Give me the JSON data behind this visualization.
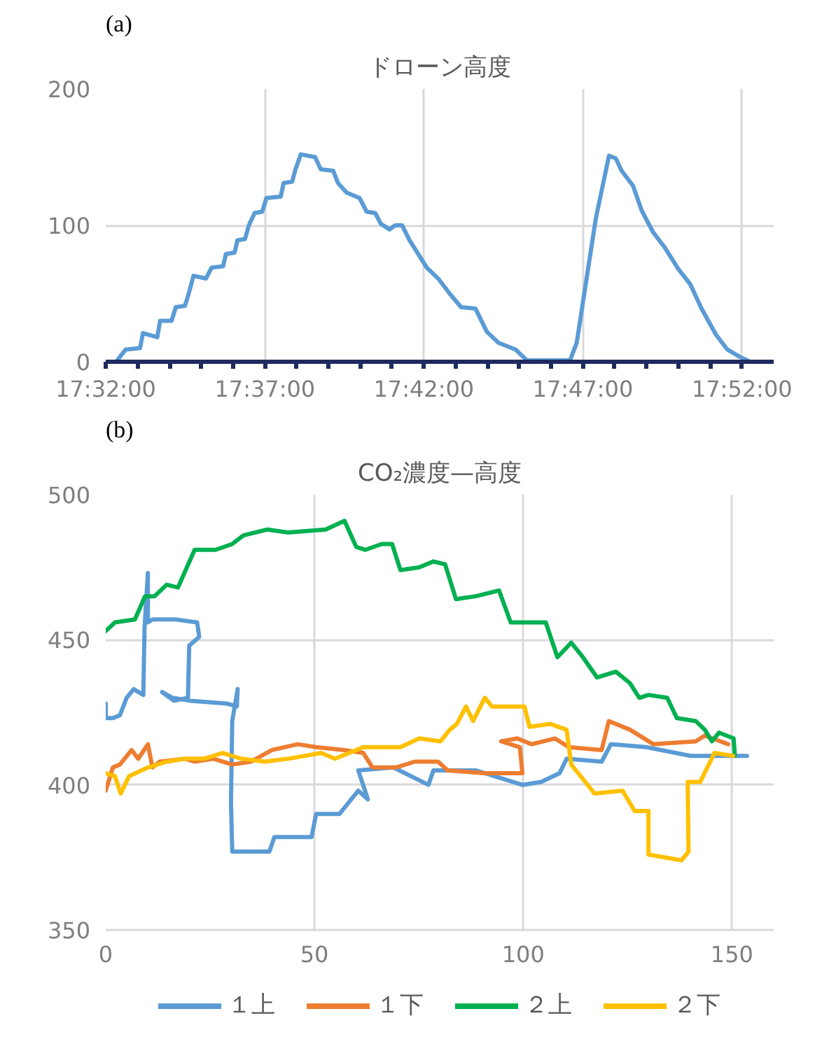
{
  "chart_data": [
    {
      "type": "line",
      "title": "ドローン高度",
      "annotations": [
        "(a)"
      ],
      "color": "#5b9bd5",
      "x": [
        17.5387,
        17.5438,
        17.5513,
        17.5528,
        17.5603,
        17.5618,
        17.5678,
        17.57,
        17.5748,
        17.5768,
        17.5793,
        17.5858,
        17.5888,
        17.5948,
        17.5963,
        17.6008,
        17.6023,
        17.6063,
        17.6083,
        17.6113,
        17.6153,
        17.6175,
        17.625,
        17.6265,
        17.631,
        17.6325,
        17.6355,
        17.643,
        17.646,
        17.6525,
        17.655,
        17.6595,
        17.6663,
        17.67,
        17.6745,
        17.6775,
        17.682,
        17.685,
        17.6886,
        17.6925,
        17.697,
        17.7015,
        17.7075,
        17.7135,
        17.7195,
        17.727,
        17.733,
        17.739,
        17.748,
        17.754,
        17.7766,
        17.7801,
        17.7901,
        17.797,
        17.8006,
        17.8036,
        17.8096,
        17.8141,
        17.8201,
        17.8261,
        17.8333,
        17.8395,
        17.8455,
        17.853,
        17.859,
        17.865,
        17.871
      ],
      "values": [
        0,
        9,
        10,
        21,
        18,
        30,
        30,
        40,
        41,
        50,
        63,
        61,
        69,
        70,
        79,
        80,
        89,
        90,
        100,
        109,
        110,
        120,
        121,
        131,
        132,
        140,
        152,
        150,
        141,
        140,
        131,
        124,
        120,
        110,
        109,
        101,
        97,
        100,
        100,
        89,
        79,
        69,
        61,
        50,
        40,
        39,
        22,
        14,
        9,
        1,
        1,
        14,
        105,
        151,
        149,
        140,
        129,
        111,
        95,
        84,
        68,
        57,
        39,
        20,
        9,
        4,
        0
      ],
      "xlim": [
        17.5333,
        17.8833
      ],
      "ylim": [
        0,
        200
      ],
      "yticks": [
        0,
        100,
        200
      ],
      "xticks": [
        {
          "value": 17.5333,
          "label": "17:32:00"
        },
        {
          "value": 17.55,
          "label": null
        },
        {
          "value": 17.5667,
          "label": null
        },
        {
          "value": 17.5833,
          "label": null
        },
        {
          "value": 17.6,
          "label": null
        },
        {
          "value": 17.6167,
          "label": "17:37:00"
        },
        {
          "value": 17.6333,
          "label": null
        },
        {
          "value": 17.65,
          "label": null
        },
        {
          "value": 17.6667,
          "label": null
        },
        {
          "value": 17.6833,
          "label": null
        },
        {
          "value": 17.7,
          "label": "17:42:00"
        },
        {
          "value": 17.7167,
          "label": null
        },
        {
          "value": 17.7333,
          "label": null
        },
        {
          "value": 17.75,
          "label": null
        },
        {
          "value": 17.7667,
          "label": null
        },
        {
          "value": 17.7833,
          "label": "17:47:00"
        },
        {
          "value": 17.8,
          "label": null
        },
        {
          "value": 17.8167,
          "label": null
        },
        {
          "value": 17.8333,
          "label": null
        },
        {
          "value": 17.85,
          "label": null
        },
        {
          "value": 17.8667,
          "label": "17:52:00"
        }
      ],
      "grid": true
    },
    {
      "type": "line",
      "title": "CO₂濃度—高度",
      "annotations": [
        "(b)"
      ],
      "xlim": [
        0,
        160
      ],
      "ylim": [
        350,
        500
      ],
      "xticks": [
        0,
        50,
        100,
        150
      ],
      "yticks": [
        350,
        400,
        450,
        500
      ],
      "grid": true,
      "legend": "bottom",
      "series": [
        {
          "name": "１上",
          "color": "#5b9bd5",
          "x": [
            0,
            0,
            1.7,
            3.4,
            5,
            6.7,
            9,
            9.3,
            10.1,
            10.1,
            11.2,
            16.8,
            21.9,
            22.4,
            20,
            19.7,
            16.3,
            13.5,
            16,
            20.2,
            29.1,
            31.4,
            31.6,
            30.3,
            30,
            30.3,
            39.2,
            40.4,
            49.3,
            50.4,
            56,
            60.5,
            62.8,
            60.5,
            68.9,
            77.3,
            78.5,
            88.6,
            99.8,
            104.3,
            108.7,
            110.4,
            118.8,
            121,
            129.5,
            140.1,
            153.6
          ],
          "values": [
            428,
            423,
            423,
            424,
            430,
            433,
            431,
            454,
            473,
            456,
            457,
            457,
            456,
            451,
            448,
            430,
            429,
            432,
            430,
            429,
            428,
            427,
            433,
            422,
            394,
            377,
            377,
            382,
            382,
            390,
            390,
            398,
            395,
            405,
            406,
            400,
            405,
            405,
            400,
            401,
            404,
            409,
            408,
            414,
            413,
            410,
            410
          ]
        },
        {
          "name": "１下",
          "color": "#ed7d31",
          "x": [
            0,
            1.7,
            3.4,
            6.2,
            7.8,
            10.1,
            11.2,
            12.9,
            19,
            21.3,
            25.8,
            30.3,
            34.8,
            39.8,
            46,
            50.4,
            57.2,
            61.7,
            63.9,
            69.5,
            74,
            79.6,
            81.9,
            90.8,
            99.8,
            99.2,
            94.7,
            98.6,
            102,
            107.6,
            110.9,
            118.8,
            120.5,
            125.6,
            131.2,
            141.3,
            143.5,
            149.1
          ],
          "values": [
            398,
            406,
            407,
            412,
            409,
            414,
            406,
            408,
            409,
            408,
            409,
            407,
            408,
            412,
            414,
            413,
            412,
            411,
            406,
            406,
            408,
            408,
            405,
            404,
            404,
            413,
            415,
            416,
            414,
            416,
            413,
            412,
            422,
            419,
            414,
            415,
            417,
            414
          ]
        },
        {
          "name": "２上",
          "color": "#00b050",
          "x": [
            0,
            2.2,
            7,
            9.4,
            11.7,
            14.6,
            17.3,
            21.3,
            26.3,
            30.3,
            33,
            38.7,
            43.7,
            52.7,
            57.2,
            60,
            62.2,
            66.1,
            68.6,
            70.6,
            75.1,
            78.5,
            81.3,
            83.9,
            88.6,
            94.2,
            97,
            105.4,
            108.2,
            111.5,
            114.3,
            117.7,
            122.2,
            125.6,
            127.8,
            130,
            134.5,
            136.8,
            141.3,
            143.5,
            145.2,
            146.9,
            150.4,
            150.7
          ],
          "values": [
            453,
            456,
            457,
            465,
            465,
            469,
            468,
            481,
            481,
            483,
            486,
            488,
            487,
            488,
            491,
            482,
            481,
            483,
            483,
            474,
            475,
            477,
            476,
            464,
            465,
            467,
            456,
            456,
            444,
            449,
            444,
            437,
            439,
            435,
            430,
            431,
            430,
            423,
            422,
            419,
            415,
            418,
            416,
            410
          ]
        },
        {
          "name": "２下",
          "color": "#ffc000",
          "x": [
            0,
            2.2,
            3.6,
            5.6,
            10.1,
            14.6,
            19,
            23.5,
            28,
            32.5,
            38.1,
            43.7,
            51.6,
            54.9,
            61.7,
            66.1,
            70.6,
            75.1,
            80.2,
            82.4,
            84.1,
            86.3,
            88,
            90.8,
            92.5,
            100.3,
            101.5,
            106.5,
            110.4,
            111.5,
            117.1,
            123.8,
            126.7,
            130,
            130,
            137.9,
            139.6,
            139.4,
            142.4,
            145.8,
            150.3
          ],
          "values": [
            404,
            403,
            397,
            403,
            406,
            408,
            409,
            409,
            411,
            409,
            408,
            409,
            411,
            409,
            413,
            413,
            413,
            416,
            415,
            419,
            421,
            427,
            422,
            430,
            427,
            427,
            420,
            421,
            419,
            407,
            397,
            398,
            391,
            391,
            376,
            374,
            377,
            401,
            401,
            411,
            410
          ]
        }
      ]
    }
  ]
}
